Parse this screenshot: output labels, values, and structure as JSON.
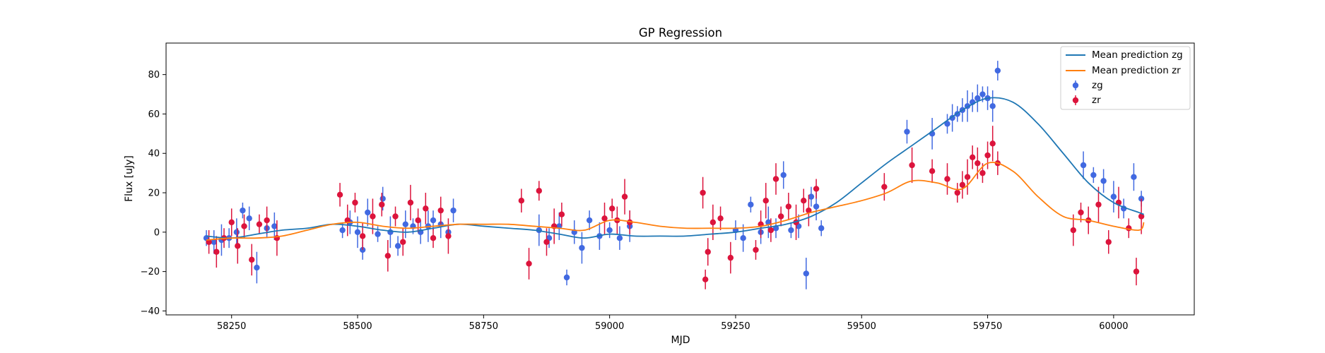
{
  "chart_data": {
    "type": "scatter",
    "title": "GP Regression",
    "xlabel": "MJD",
    "ylabel": "Flux [uJy]",
    "xlim": [
      58120,
      60160
    ],
    "ylim": [
      -42,
      96
    ],
    "xticks": [
      58250,
      58500,
      58750,
      59000,
      59250,
      59500,
      59750,
      60000
    ],
    "yticks": [
      -40,
      -20,
      0,
      20,
      40,
      60,
      80
    ],
    "grid": false,
    "legend_position": "top-right",
    "colors": {
      "zg_line": "#1f77b4",
      "zr_line": "#ff7f0e",
      "zg_points": "#4169e1",
      "zr_points": "#dc143c"
    },
    "lines": [
      {
        "name": "Mean prediction zg",
        "x": [
          58200,
          58250,
          58300,
          58350,
          58400,
          58450,
          58500,
          58550,
          58600,
          58650,
          58700,
          58750,
          58800,
          58850,
          58900,
          58950,
          59000,
          59050,
          59100,
          59150,
          59200,
          59250,
          59300,
          59350,
          59400,
          59450,
          59500,
          59550,
          59600,
          59650,
          59700,
          59750,
          59800,
          59850,
          59900,
          59950,
          60000,
          60050,
          60060
        ],
        "y": [
          -2,
          -3,
          -1,
          1,
          2,
          4,
          3,
          1,
          0,
          2,
          4,
          3,
          2,
          1,
          -1,
          -3,
          -1,
          -2,
          -2,
          -2,
          -1,
          0,
          2,
          4,
          8,
          15,
          25,
          35,
          44,
          53,
          62,
          68,
          66,
          55,
          40,
          25,
          15,
          10,
          9
        ]
      },
      {
        "name": "Mean prediction zr",
        "x": [
          58200,
          58250,
          58300,
          58350,
          58400,
          58450,
          58500,
          58550,
          58600,
          58650,
          58700,
          58750,
          58800,
          58850,
          58900,
          58950,
          59000,
          59050,
          59100,
          59150,
          59200,
          59250,
          59300,
          59350,
          59400,
          59450,
          59500,
          59550,
          59600,
          59650,
          59700,
          59750,
          59800,
          59850,
          59900,
          59950,
          60000,
          60050,
          60060
        ],
        "y": [
          -4,
          -3,
          -3,
          -2,
          1,
          4,
          5,
          3,
          2,
          3,
          4,
          4,
          4,
          3,
          2,
          1,
          6,
          5,
          3,
          2,
          2,
          2,
          3,
          6,
          10,
          13,
          16,
          20,
          26,
          25,
          22,
          35,
          31,
          18,
          8,
          6,
          3,
          1,
          5
        ]
      }
    ],
    "series": [
      {
        "name": "zg",
        "x": [
          58200,
          58215,
          58230,
          58245,
          58260,
          58272,
          58285,
          58300,
          58320,
          58335,
          58470,
          58485,
          58500,
          58510,
          58520,
          58540,
          58550,
          58565,
          58580,
          58595,
          58610,
          58625,
          58640,
          58650,
          58665,
          58680,
          58690,
          58860,
          58880,
          58900,
          58915,
          58930,
          58945,
          58960,
          58980,
          59000,
          59020,
          59040,
          59250,
          59265,
          59280,
          59300,
          59315,
          59330,
          59345,
          59360,
          59375,
          59390,
          59400,
          59410,
          59420,
          59590,
          59640,
          59670,
          59680,
          59690,
          59700,
          59710,
          59720,
          59730,
          59740,
          59750,
          59760,
          59770,
          59940,
          59960,
          59980,
          60000,
          60020,
          60040,
          60055
        ],
        "y": [
          -3,
          -5,
          -4,
          -3,
          0,
          11,
          7,
          -18,
          2,
          3,
          1,
          5,
          0,
          -9,
          10,
          -1,
          17,
          0,
          -7,
          4,
          3,
          0,
          3,
          6,
          4,
          0,
          11,
          1,
          -3,
          3,
          -23,
          0,
          -8,
          6,
          -2,
          1,
          -3,
          3,
          1,
          -3,
          14,
          0,
          5,
          2,
          29,
          1,
          3,
          -21,
          18,
          13,
          2,
          51,
          50,
          55,
          58,
          60,
          62,
          64,
          66,
          68,
          70,
          68,
          64,
          82,
          34,
          29,
          26,
          18,
          12,
          28,
          17
        ]
      },
      {
        "name": "zr",
        "x": [
          58205,
          58220,
          58235,
          58250,
          58262,
          58275,
          58290,
          58305,
          58320,
          58340,
          58465,
          58480,
          58495,
          58510,
          58530,
          58548,
          58560,
          58575,
          58590,
          58605,
          58620,
          58635,
          58650,
          58665,
          58680,
          58825,
          58840,
          58860,
          58875,
          58890,
          58905,
          58990,
          59005,
          59015,
          59030,
          59040,
          59185,
          59190,
          59195,
          59205,
          59220,
          59240,
          59290,
          59300,
          59310,
          59320,
          59330,
          59340,
          59355,
          59370,
          59385,
          59395,
          59410,
          59545,
          59600,
          59640,
          59670,
          59690,
          59700,
          59710,
          59720,
          59730,
          59740,
          59750,
          59760,
          59770,
          59920,
          59935,
          59950,
          59970,
          59990,
          60010,
          60030,
          60045,
          60055
        ],
        "y": [
          -5,
          -10,
          -3,
          5,
          -7,
          3,
          -14,
          4,
          6,
          -3,
          19,
          6,
          15,
          -2,
          8,
          14,
          -12,
          8,
          -5,
          15,
          6,
          12,
          -3,
          11,
          -2,
          16,
          -16,
          21,
          -5,
          3,
          9,
          7,
          12,
          6,
          18,
          5,
          20,
          -24,
          -10,
          5,
          7,
          -13,
          -9,
          4,
          16,
          1,
          27,
          8,
          13,
          5,
          16,
          11,
          22,
          23,
          34,
          31,
          27,
          20,
          24,
          28,
          38,
          35,
          30,
          39,
          45,
          35,
          1,
          10,
          6,
          14,
          -5,
          15,
          2,
          -20,
          8
        ]
      }
    ]
  }
}
